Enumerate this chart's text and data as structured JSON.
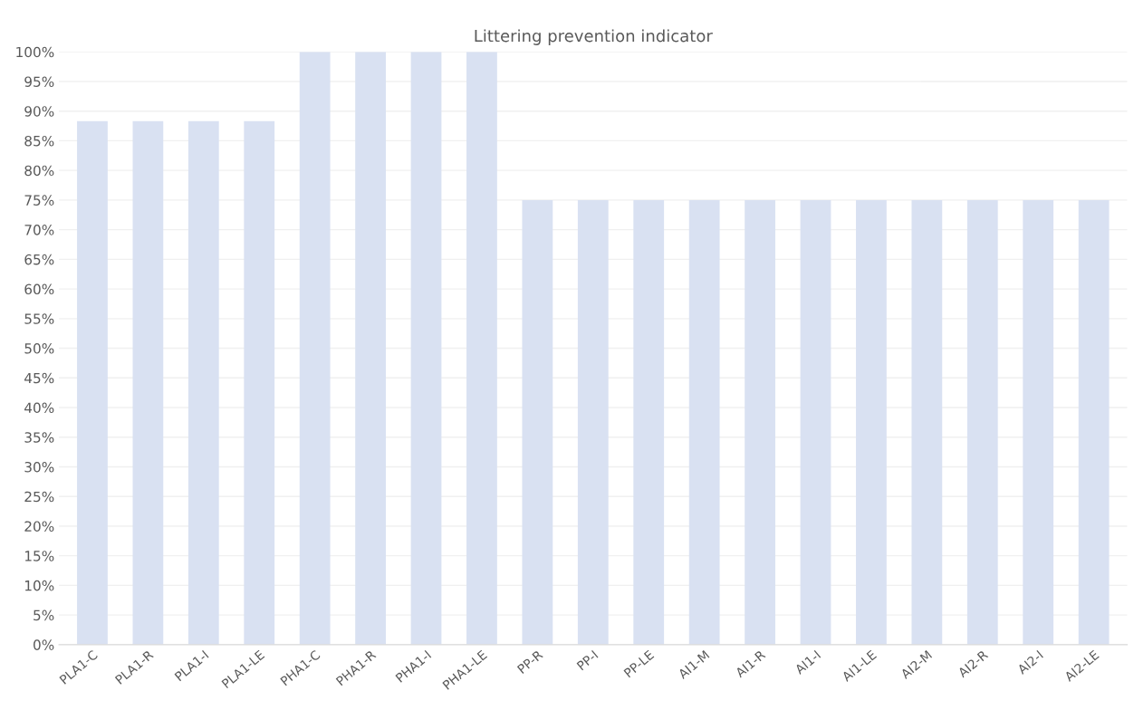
{
  "chart_data": {
    "type": "bar",
    "title": "Littering prevention indicator",
    "categories": [
      "PLA1-C",
      "PLA1-R",
      "PLA1-I",
      "PLA1-LE",
      "PHA1-C",
      "PHA1-R",
      "PHA1-I",
      "PHA1-LE",
      "PP-R",
      "PP-I",
      "PP-LE",
      "AI1-M",
      "AI1-R",
      "AI1-I",
      "AI1-LE",
      "AI2-M",
      "AI2-R",
      "AI2-I",
      "AI2-LE"
    ],
    "values": [
      88.3,
      88.3,
      88.3,
      88.3,
      100,
      100,
      100,
      100,
      75,
      75,
      75,
      75,
      75,
      75,
      75,
      75,
      75,
      75,
      75
    ],
    "color": "#d9e1f2",
    "ylim": [
      0,
      100
    ],
    "yticks": [
      {
        "value": 0,
        "label": "0%"
      },
      {
        "value": 5,
        "label": "5%"
      },
      {
        "value": 10,
        "label": "10%"
      },
      {
        "value": 15,
        "label": "15%"
      },
      {
        "value": 20,
        "label": "20%"
      },
      {
        "value": 25,
        "label": "25%"
      },
      {
        "value": 30,
        "label": "30%"
      },
      {
        "value": 35,
        "label": "35%"
      },
      {
        "value": 40,
        "label": "40%"
      },
      {
        "value": 45,
        "label": "45%"
      },
      {
        "value": 50,
        "label": "50%"
      },
      {
        "value": 55,
        "label": "55%"
      },
      {
        "value": 60,
        "label": "60%"
      },
      {
        "value": 65,
        "label": "65%"
      },
      {
        "value": 70,
        "label": "70%"
      },
      {
        "value": 75,
        "label": "75%"
      },
      {
        "value": 80,
        "label": "80%"
      },
      {
        "value": 85,
        "label": "85%"
      },
      {
        "value": 90,
        "label": "90%"
      },
      {
        "value": 95,
        "label": "95%"
      },
      {
        "value": 100,
        "label": "100%"
      }
    ],
    "grid": "y"
  }
}
